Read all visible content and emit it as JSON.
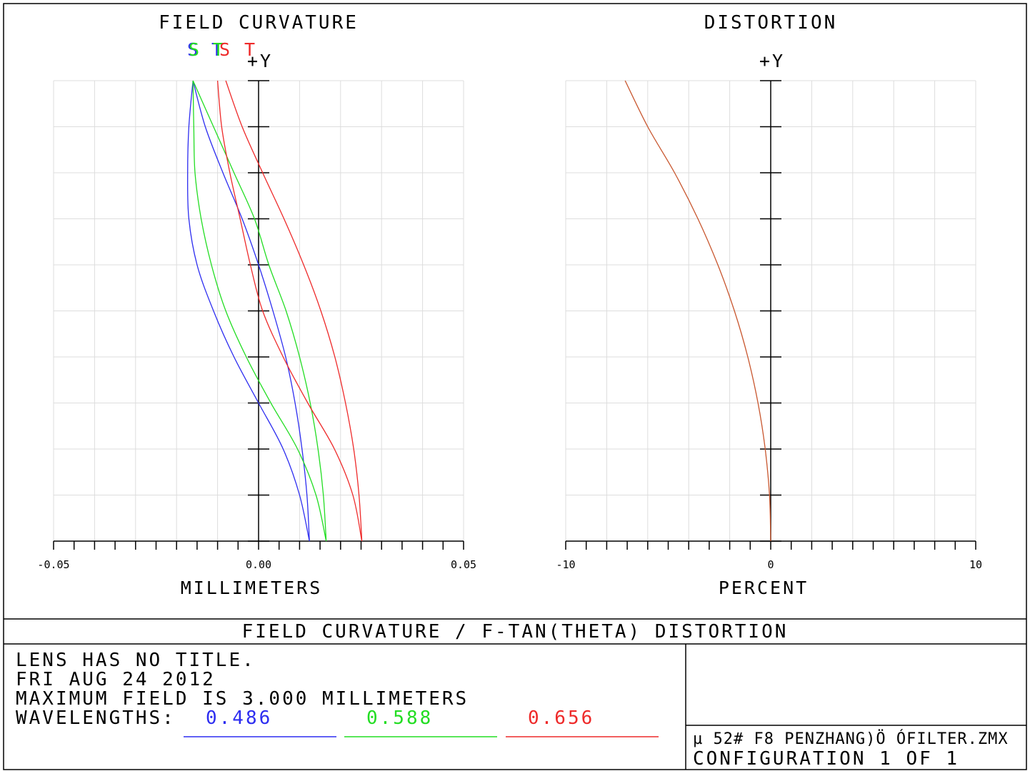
{
  "fc_title": "FIELD CURVATURE",
  "dist_title": "DISTORTION",
  "y_marker": "+Y",
  "fc_xlabel": "MILLIMETERS",
  "dist_xlabel": "PERCENT",
  "footer_title": "FIELD CURVATURE / F-TAN(THETA) DISTORTION",
  "info": {
    "line1": "LENS HAS NO TITLE.",
    "line2": "FRI AUG 24 2012",
    "line3": "MAXIMUM FIELD IS 3.000 MILLIMETERS",
    "wavelengths_label": "WAVELENGTHS:"
  },
  "file_line": "µ 52# F8 PENZHANG)Ö   ÓFILTER.ZMX",
  "config_line": "CONFIGURATION 1 OF 1",
  "colors": {
    "blue": "#2d2df0",
    "green": "#22dd22",
    "red": "#ee2a2a",
    "dist": "#c8562e",
    "grid": "#dddddd"
  },
  "legend_letters": [
    {
      "text": "S",
      "color": "#2d2df0"
    },
    {
      "text": "S",
      "color": "#22dd22"
    },
    {
      "text": "T",
      "color": "#2d2df0"
    },
    {
      "text": "T",
      "color": "#22dd22"
    },
    {
      "text": "S",
      "color": "#ee2a2a"
    },
    {
      "text": "T",
      "color": "#ee2a2a"
    }
  ],
  "chart_data": [
    {
      "type": "line",
      "title": "FIELD CURVATURE",
      "xlabel": "MILLIMETERS",
      "ylabel": "+Y",
      "xlim": [
        -0.05,
        0.05
      ],
      "ylim": [
        0,
        3.0
      ],
      "x_ticks": [
        "-0.05",
        "0.00",
        "0.05"
      ],
      "grid": true,
      "series": [
        {
          "name": "S",
          "wavelength": "0.486",
          "color": "#2d2df0",
          "y": [
            0,
            0.3,
            0.6,
            0.9,
            1.2,
            1.5,
            1.8,
            2.1,
            2.4,
            2.7,
            3.0
          ],
          "x": [
            0.0124,
            0.0118,
            0.0106,
            0.0089,
            0.0066,
            0.0035,
            0.0,
            -0.004,
            -0.0087,
            -0.013,
            -0.016
          ]
        },
        {
          "name": "T",
          "wavelength": "0.486",
          "color": "#2d2df0",
          "y": [
            0,
            0.3,
            0.6,
            0.9,
            1.2,
            1.5,
            1.8,
            2.1,
            2.4,
            2.7,
            3.0
          ],
          "x": [
            0.0124,
            0.01,
            0.006,
            0.0,
            -0.006,
            -0.011,
            -0.015,
            -0.017,
            -0.0173,
            -0.017,
            -0.016
          ]
        },
        {
          "name": "S",
          "wavelength": "0.588",
          "color": "#22dd22",
          "y": [
            0,
            0.3,
            0.6,
            0.9,
            1.2,
            1.5,
            1.8,
            2.1,
            2.4,
            2.7,
            3.0
          ],
          "x": [
            0.0165,
            0.0158,
            0.0145,
            0.0126,
            0.01,
            0.0067,
            0.0025,
            -0.001,
            -0.006,
            -0.011,
            -0.016
          ]
        },
        {
          "name": "T",
          "wavelength": "0.588",
          "color": "#22dd22",
          "y": [
            0,
            0.3,
            0.6,
            0.9,
            1.2,
            1.5,
            1.8,
            2.1,
            2.4,
            2.7,
            3.0
          ],
          "x": [
            0.0165,
            0.014,
            0.0095,
            0.003,
            -0.003,
            -0.008,
            -0.0115,
            -0.014,
            -0.0155,
            -0.0158,
            -0.016
          ]
        },
        {
          "name": "S",
          "wavelength": "0.656",
          "color": "#ee2a2a",
          "y": [
            0,
            0.3,
            0.6,
            0.9,
            1.2,
            1.5,
            1.8,
            2.1,
            2.4,
            2.7,
            3.0
          ],
          "x": [
            0.0252,
            0.0245,
            0.0232,
            0.0212,
            0.0186,
            0.0152,
            0.011,
            0.0062,
            0.001,
            -0.004,
            -0.008
          ]
        },
        {
          "name": "T",
          "wavelength": "0.656",
          "color": "#ee2a2a",
          "y": [
            0,
            0.3,
            0.6,
            0.9,
            1.2,
            1.5,
            1.8,
            2.1,
            2.4,
            2.7,
            3.0
          ],
          "x": [
            0.0252,
            0.023,
            0.0185,
            0.012,
            0.006,
            0.001,
            -0.002,
            -0.0045,
            -0.007,
            -0.009,
            -0.01
          ]
        }
      ]
    },
    {
      "type": "line",
      "title": "DISTORTION",
      "xlabel": "PERCENT",
      "ylabel": "+Y",
      "xlim": [
        -10,
        10
      ],
      "ylim": [
        0,
        3.0
      ],
      "x_ticks": [
        "-10",
        "0",
        "10"
      ],
      "grid": true,
      "series": [
        {
          "color": "#c8562e",
          "y": [
            0,
            0.3,
            0.6,
            0.9,
            1.2,
            1.5,
            1.8,
            2.1,
            2.4,
            2.7,
            3.0
          ],
          "x": [
            0.0,
            -0.06,
            -0.27,
            -0.62,
            -1.12,
            -1.77,
            -2.58,
            -3.55,
            -4.69,
            -6.0,
            -7.1
          ]
        }
      ]
    }
  ],
  "wavelengths": [
    {
      "value": "0.486",
      "color": "#2d2df0"
    },
    {
      "value": "0.588",
      "color": "#22dd22"
    },
    {
      "value": "0.656",
      "color": "#ee2a2a"
    }
  ]
}
